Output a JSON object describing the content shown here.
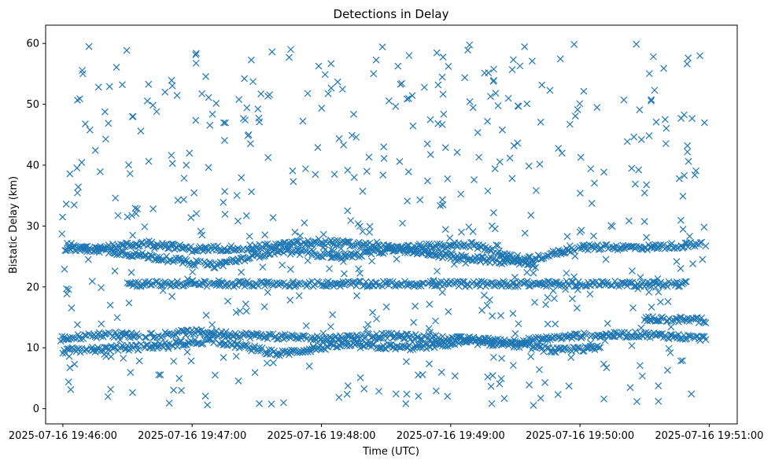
{
  "chart_data": {
    "type": "scatter",
    "title": "Detections in Delay",
    "xlabel": "Time (UTC)",
    "ylabel": "Bistatic Delay (km)",
    "x_tick_labels": [
      "2025-07-16 19:46:00",
      "2025-07-16 19:47:00",
      "2025-07-16 19:48:00",
      "2025-07-16 19:49:00",
      "2025-07-16 19:50:00",
      "2025-07-16 19:51:00"
    ],
    "y_ticks": [
      0,
      10,
      20,
      30,
      40,
      50,
      60
    ],
    "xlim": [
      "2025-07-16 19:45:52",
      "2025-07-16 19:51:13"
    ],
    "ylim": [
      -2.5,
      63
    ],
    "marker": "x",
    "color": "#1f77b4",
    "grid": false,
    "x_start": "2025-07-16 19:45:59",
    "x_end": "2025-07-16 19:50:59",
    "tracks": [
      {
        "x": [
          "2025-07-16 19:45:59",
          "2025-07-16 19:46:20",
          "2025-07-16 19:46:40",
          "2025-07-16 19:47:00",
          "2025-07-16 19:47:30",
          "2025-07-16 19:48:00",
          "2025-07-16 19:48:30",
          "2025-07-16 19:49:00",
          "2025-07-16 19:49:30",
          "2025-07-16 19:50:00",
          "2025-07-16 19:50:30",
          "2025-07-16 19:50:59"
        ],
        "y": [
          11.5,
          12.2,
          12.0,
          12.6,
          12.0,
          11.5,
          12.0,
          11.5,
          11.0,
          12.0,
          12.2,
          11.5
        ]
      },
      {
        "x": [
          "2025-07-16 19:46:00",
          "2025-07-16 19:46:40",
          "2025-07-16 19:47:10",
          "2025-07-16 19:47:40",
          "2025-07-16 19:48:10",
          "2025-07-16 19:48:40",
          "2025-07-16 19:49:10",
          "2025-07-16 19:49:30",
          "2025-07-16 19:49:50",
          "2025-07-16 19:50:10"
        ],
        "y": [
          9.5,
          10.2,
          11.2,
          9.0,
          10.5,
          10.0,
          11.0,
          10.5,
          9.5,
          10.0
        ]
      },
      {
        "x": [
          "2025-07-16 19:46:01",
          "2025-07-16 19:46:20",
          "2025-07-16 19:46:40",
          "2025-07-16 19:47:00",
          "2025-07-16 19:47:30",
          "2025-07-16 19:48:00",
          "2025-07-16 19:48:30",
          "2025-07-16 19:49:00",
          "2025-07-16 19:49:30",
          "2025-07-16 19:50:00",
          "2025-07-16 19:50:30",
          "2025-07-16 19:50:59"
        ],
        "y": [
          26.0,
          26.5,
          27.2,
          26.2,
          26.5,
          27.5,
          26.5,
          25.0,
          24.0,
          26.5,
          26.5,
          27.0
        ]
      },
      {
        "x": [
          "2025-07-16 19:46:02",
          "2025-07-16 19:46:30",
          "2025-07-16 19:46:50",
          "2025-07-16 19:47:10",
          "2025-07-16 19:47:40",
          "2025-07-16 19:48:10",
          "2025-07-16 19:48:40",
          "2025-07-16 19:49:10",
          "2025-07-16 19:49:40"
        ],
        "y": [
          26.8,
          25.5,
          24.5,
          23.5,
          26.0,
          25.0,
          26.5,
          27.0,
          23.5
        ]
      },
      {
        "x": [
          "2025-07-16 19:46:30",
          "2025-07-16 19:47:00",
          "2025-07-16 19:47:40",
          "2025-07-16 19:48:10",
          "2025-07-16 19:48:40",
          "2025-07-16 19:49:10",
          "2025-07-16 19:49:40",
          "2025-07-16 19:50:10",
          "2025-07-16 19:50:50"
        ],
        "y": [
          20.5,
          20.5,
          20.5,
          20.5,
          20.5,
          20.5,
          20.5,
          20.5,
          20.5
        ]
      },
      {
        "x": [
          "2025-07-16 19:50:30",
          "2025-07-16 19:50:59"
        ],
        "y": [
          14.8,
          14.5
        ]
      }
    ],
    "scatter_x_range": [
      "2025-07-16 19:45:59",
      "2025-07-16 19:50:59"
    ],
    "scatter_y_range": [
      0.5,
      60
    ]
  }
}
